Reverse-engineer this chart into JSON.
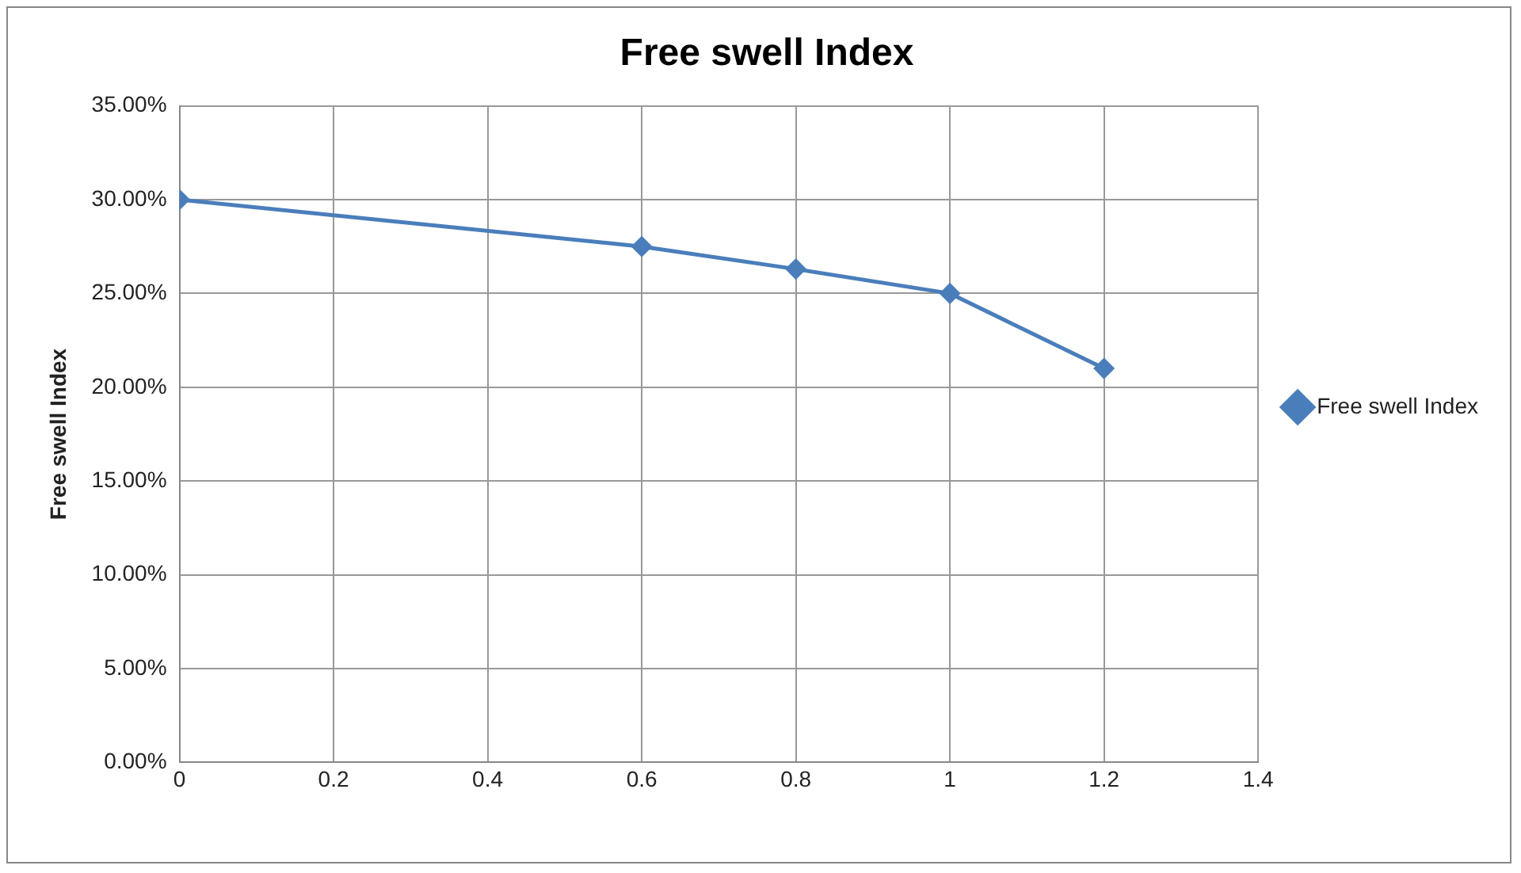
{
  "chart_data": {
    "type": "line",
    "title": "Free swell Index",
    "ylabel": "Free swell Index",
    "x": [
      0,
      0.6,
      0.8,
      1,
      1.2
    ],
    "series": [
      {
        "name": "Free swell Index",
        "color": "#4a7ebb",
        "values": [
          30,
          27.5,
          26.3,
          25,
          21
        ]
      }
    ],
    "xlim": [
      0,
      1.4
    ],
    "xticks": [
      0,
      0.2,
      0.4,
      0.6,
      0.8,
      1,
      1.2,
      1.4
    ],
    "ylim": [
      0,
      35
    ],
    "yticks": [
      {
        "value": 0,
        "label": "0.00%"
      },
      {
        "value": 5,
        "label": "5.00%"
      },
      {
        "value": 10,
        "label": "10.00%"
      },
      {
        "value": 15,
        "label": "15.00%"
      },
      {
        "value": 20,
        "label": "20.00%"
      },
      {
        "value": 25,
        "label": "25.00%"
      },
      {
        "value": 30,
        "label": "30.00%"
      },
      {
        "value": 35,
        "label": "35.00%"
      }
    ],
    "grid": true,
    "legend": "right",
    "marker": "diamond",
    "line_style": "solid"
  }
}
